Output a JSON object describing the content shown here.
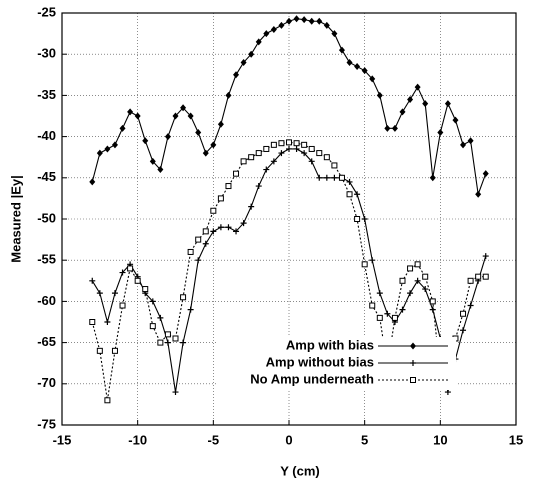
{
  "chart_data": {
    "type": "line",
    "x_label": "Y (cm)",
    "y_label": "Measured |Ey|",
    "x": [
      -13,
      -12.5,
      -12,
      -11.5,
      -11,
      -10.5,
      -10,
      -9.5,
      -9,
      -8.5,
      -8,
      -7.5,
      -7,
      -6.5,
      -6,
      -5.5,
      -5,
      -4.5,
      -4,
      -3.5,
      -3,
      -2.5,
      -2,
      -1.5,
      -1,
      -0.5,
      0,
      0.5,
      1,
      1.5,
      2,
      2.5,
      3,
      3.5,
      4,
      4.5,
      5,
      5.5,
      6,
      6.5,
      7,
      7.5,
      8,
      8.5,
      9,
      9.5,
      10,
      10.5,
      11,
      11.5,
      12,
      12.5,
      13
    ],
    "series": [
      {
        "name": "Amp with bias",
        "color": "#000000",
        "marker": "diamond",
        "dash": "solid",
        "values": [
          -45.5,
          -42,
          -41.5,
          -41,
          -39,
          -37,
          -37.5,
          -40.5,
          -43,
          -44,
          -40,
          -37.5,
          -36.5,
          -37.5,
          -39.5,
          -42,
          -41,
          -38.5,
          -35,
          -32.5,
          -31,
          -30,
          -28.5,
          -27.5,
          -27,
          -26.5,
          -26,
          -25.7,
          -25.8,
          -26,
          -26,
          -26.5,
          -27.5,
          -29.5,
          -31,
          -31.5,
          -32,
          -33,
          -35,
          -39,
          -39,
          -37,
          -35.5,
          -34,
          -36,
          -45,
          -39.5,
          -36,
          -38,
          -41,
          -40.5,
          -47,
          -44.5
        ]
      },
      {
        "name": "Amp without bias",
        "color": "#000000",
        "marker": "cross",
        "dash": "solid",
        "values": [
          -57.5,
          -59,
          -62.5,
          -59,
          -56.5,
          -55.5,
          -57,
          -59,
          -60,
          -62,
          -65,
          -71,
          -65,
          -61,
          -55,
          -53,
          -51.5,
          -51,
          -51,
          -51.5,
          -50.5,
          -48.5,
          -46,
          -44,
          -43,
          -42,
          -41.5,
          -41.5,
          -42,
          -43,
          -45,
          -45,
          -45,
          -45,
          -45.5,
          -47,
          -50,
          -55,
          -59,
          -61.5,
          -62.5,
          -61,
          -59,
          -57.5,
          -58.5,
          -61,
          -64.5,
          -71,
          -67,
          -63.5,
          -60.5,
          -57.5,
          -54.5
        ]
      },
      {
        "name": "No Amp underneath",
        "color": "#000000",
        "marker": "square",
        "dash": "dotted",
        "values": [
          -62.5,
          -66,
          -72,
          -66,
          -60.5,
          -56,
          -57.5,
          -58.5,
          -63,
          -65,
          -64,
          -64.5,
          -59.5,
          -54,
          -52.5,
          -51.5,
          -49,
          -47.5,
          -46,
          -44.5,
          -43,
          -42.5,
          -42,
          -41.5,
          -41,
          -40.8,
          -40.7,
          -40.8,
          -41,
          -41.5,
          -42,
          -42.5,
          -43.5,
          -45,
          -47,
          -50,
          -55.5,
          -60.5,
          -62,
          -68,
          -62,
          -57.5,
          -56,
          -55.5,
          -57,
          -60,
          -69,
          -67.5,
          -64.5,
          -61.5,
          -57.5,
          -57,
          -57
        ]
      }
    ],
    "xlim": [
      -15,
      15
    ],
    "xticks": [
      -15,
      -10,
      -5,
      0,
      5,
      10,
      15
    ],
    "ylim": [
      -75,
      -25
    ],
    "yticks": [
      -75,
      -70,
      -65,
      -60,
      -55,
      -50,
      -45,
      -40,
      -35,
      -30,
      -25
    ],
    "grid": true,
    "legend": "lower-right"
  }
}
